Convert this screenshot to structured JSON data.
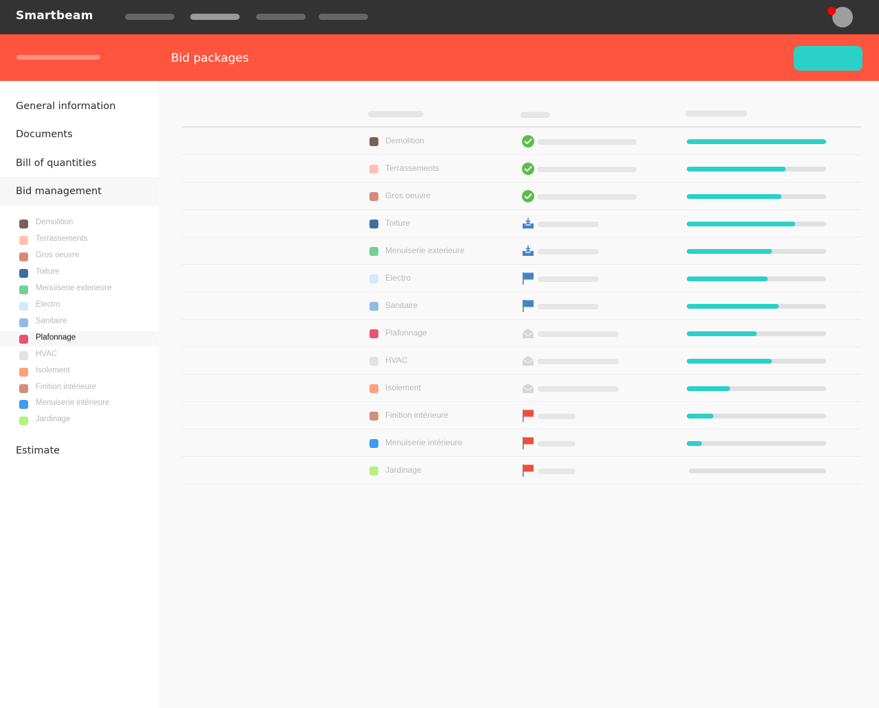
{
  "app": {
    "brand": "Smartbeam"
  },
  "header": {
    "title": "Bid packages"
  },
  "sidebar": {
    "sections": [
      "General information",
      "Documents",
      "Bill of quantities",
      "Bid management",
      "Estimate"
    ],
    "active_section": "Bid management",
    "selected_package": "Plafonnage"
  },
  "packages": [
    {
      "label": "Demolition",
      "color": "#7b6058",
      "status": "accepted",
      "progress": 1.0
    },
    {
      "label": "Terrassements",
      "color": "#ffc2b0",
      "status": "accepted",
      "progress": 0.71
    },
    {
      "label": "Gros oeuvre",
      "color": "#d98a77",
      "status": "accepted",
      "progress": 0.68
    },
    {
      "label": "Toiture",
      "color": "#3e6ea1",
      "status": "received",
      "progress": 0.78
    },
    {
      "label": "Menuiserie exterieure",
      "color": "#6fd394",
      "status": "received",
      "progress": 0.61
    },
    {
      "label": "Electro",
      "color": "#d3eafd",
      "status": "invited",
      "progress": 0.58
    },
    {
      "label": "Sanitaire",
      "color": "#8fbbe8",
      "status": "invited",
      "progress": 0.66
    },
    {
      "label": "Plafonnage",
      "color": "#e8536f",
      "status": "sent",
      "progress": 0.5
    },
    {
      "label": "HVAC",
      "color": "#e2e2e2",
      "status": "sent",
      "progress": 0.61
    },
    {
      "label": "Isolement",
      "color": "#ffa07e",
      "status": "sent",
      "progress": 0.31
    },
    {
      "label": "Finition intérieure",
      "color": "#d18f7e",
      "status": "draft",
      "progress": 0.19
    },
    {
      "label": "Menuiserie intérieure",
      "color": "#3d9bf0",
      "status": "draft",
      "progress": 0.11
    },
    {
      "label": "Jardinage",
      "color": "#b6f27c",
      "status": "draft",
      "progress": 0.0
    }
  ],
  "status_icons": {
    "accepted": "check-circle-icon",
    "received": "inbox-icon",
    "invited": "blue-flag-icon",
    "sent": "envelope-icon",
    "draft": "red-flag-icon"
  },
  "colors": {
    "topbar": "#333333",
    "accent": "#ff553e",
    "progress": "#2ad1c9",
    "success": "#5cbd4a",
    "flag_blue": "#4285c6",
    "flag_red": "#f44b3a",
    "notification": "#ff0000"
  }
}
